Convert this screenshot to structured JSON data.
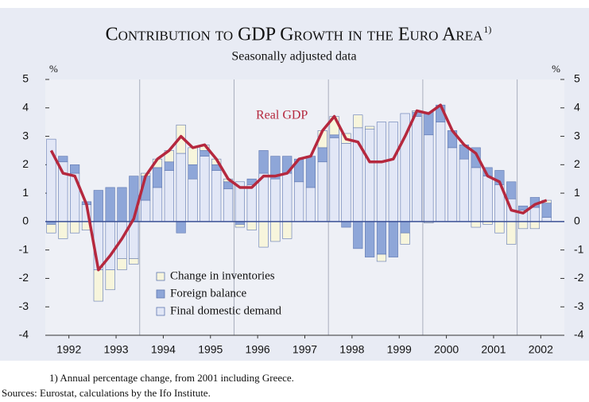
{
  "chart_data": {
    "type": "stacked_bar_line",
    "title": "Contribution to GDP Growth in the Euro Area",
    "title_note": "1)",
    "subtitle": "Seasonally adjusted data",
    "y_unit_left": "%",
    "y_unit_right": "%",
    "footnote": "1) Annual percentage change, from 2001 including Greece.",
    "sources": "Sources: Eurostat, calculations by the Ifo Institute.",
    "line_label": "Real GDP",
    "x": [
      1992.125,
      1992.375,
      1992.625,
      1992.875,
      1993.125,
      1993.375,
      1993.625,
      1993.875,
      1994.125,
      1994.375,
      1994.625,
      1994.875,
      1995.125,
      1995.375,
      1995.625,
      1995.875,
      1996.125,
      1996.375,
      1996.625,
      1996.875,
      1997.125,
      1997.375,
      1997.625,
      1997.875,
      1998.125,
      1998.375,
      1998.625,
      1998.875,
      1999.125,
      1999.375,
      1999.625,
      1999.875,
      2000.125,
      2000.375,
      2000.625,
      2000.875,
      2001.125,
      2001.375,
      2001.625,
      2001.875,
      2002.125,
      2002.375,
      2002.625,
      2002.875
    ],
    "xlim": [
      1992,
      2003
    ],
    "xticks": [
      {
        "value": 1992.5,
        "label": "1992"
      },
      {
        "value": 1993.5,
        "label": "1993"
      },
      {
        "value": 1994.5,
        "label": "1994"
      },
      {
        "value": 1995.5,
        "label": "1995"
      },
      {
        "value": 1996.5,
        "label": "1996"
      },
      {
        "value": 1997.5,
        "label": "1997"
      },
      {
        "value": 1998.5,
        "label": "1998"
      },
      {
        "value": 1999.5,
        "label": "1999"
      },
      {
        "value": 2000.5,
        "label": "2000"
      },
      {
        "value": 2001.5,
        "label": "2001"
      },
      {
        "value": 2002.5,
        "label": "2002"
      }
    ],
    "x_separators": [
      1994,
      1996,
      1998,
      2000,
      2002
    ],
    "ylim": [
      -4,
      5
    ],
    "yticks": [
      -4,
      -3,
      -2,
      -1,
      0,
      1,
      2,
      3,
      4,
      5
    ],
    "y2lim": [
      -4,
      5
    ],
    "y2ticks": [
      -4,
      -3,
      -2,
      -1,
      0,
      1,
      2,
      3,
      4,
      5
    ],
    "series": [
      {
        "name": "Final domestic demand",
        "kind": "bar",
        "color": "#e2e7f6",
        "values": [
          2.9,
          2.1,
          1.7,
          0.6,
          -1.7,
          -1.7,
          -1.3,
          -1.3,
          0.75,
          1.2,
          1.8,
          2.4,
          1.5,
          2.3,
          1.8,
          1.15,
          1.4,
          1.3,
          1.7,
          1.5,
          1.7,
          1.4,
          1.2,
          2.1,
          2.95,
          2.75,
          3.3,
          3.25,
          3.5,
          3.5,
          3.8,
          3.7,
          3.05,
          3.5,
          2.6,
          2.2,
          1.9,
          1.6,
          1.3,
          0.8,
          0.4,
          0.5,
          0.15,
          null
        ]
      },
      {
        "name": "Foreign balance",
        "kind": "bar",
        "color": "#8ea6d8",
        "values": [
          -0.1,
          0.2,
          0.3,
          0.1,
          1.1,
          1.2,
          1.2,
          1.6,
          0.85,
          0.7,
          0.3,
          -0.4,
          0.5,
          0.2,
          0.2,
          0.25,
          -0.1,
          0.2,
          0.8,
          0.8,
          0.6,
          0.8,
          1.1,
          0.5,
          0.1,
          -0.2,
          -0.95,
          -1.25,
          -1.15,
          -1.25,
          -0.4,
          0.15,
          0.8,
          0.6,
          0.6,
          0.5,
          0.7,
          0.3,
          0.5,
          0.6,
          0.15,
          0.35,
          0.5,
          null
        ]
      },
      {
        "name": "Change in inventories",
        "kind": "bar",
        "color": "#f7f5dc",
        "values": [
          -0.3,
          -0.6,
          -0.4,
          -0.3,
          -1.1,
          -0.7,
          -0.4,
          -0.2,
          0.1,
          0.3,
          0.4,
          1.0,
          0.6,
          0.2,
          0.2,
          0.1,
          -0.1,
          -0.3,
          -0.9,
          -0.7,
          -0.6,
          0.0,
          0.0,
          0.6,
          0.65,
          0.35,
          0.45,
          0.1,
          -0.25,
          0.0,
          -0.4,
          0.05,
          -0.05,
          0.0,
          0.0,
          0.0,
          -0.2,
          -0.1,
          -0.4,
          -0.8,
          -0.25,
          -0.25,
          0.1,
          null
        ]
      },
      {
        "name": "Real GDP",
        "kind": "line",
        "color": "#b5283e",
        "values": [
          2.5,
          1.7,
          1.6,
          0.6,
          -1.7,
          -1.2,
          -0.6,
          0.1,
          1.6,
          2.2,
          2.5,
          3.0,
          2.6,
          2.7,
          2.2,
          1.5,
          1.2,
          1.2,
          1.6,
          1.6,
          1.7,
          2.2,
          2.3,
          3.2,
          3.7,
          2.9,
          2.8,
          2.1,
          2.1,
          2.2,
          3.0,
          3.9,
          3.8,
          4.1,
          3.2,
          2.7,
          2.4,
          1.6,
          1.4,
          0.4,
          0.3,
          0.6,
          0.75,
          null
        ]
      }
    ],
    "legend_order": [
      2,
      1,
      0
    ]
  }
}
